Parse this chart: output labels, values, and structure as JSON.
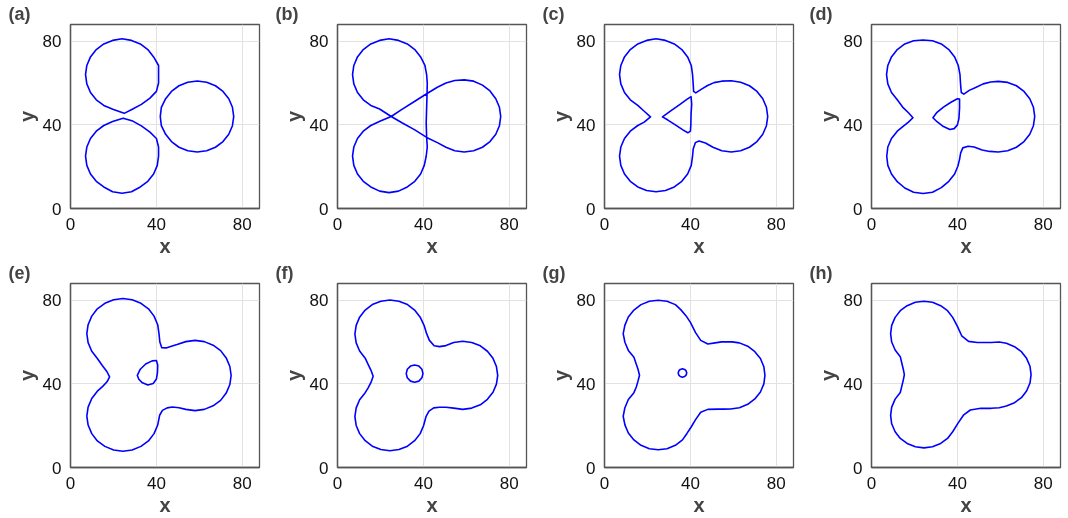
{
  "chart_data": [
    {
      "type": "line",
      "title": "(a)",
      "xlabel": "x",
      "ylabel": "y",
      "xlim": [
        0,
        88
      ],
      "ylim": [
        0,
        88
      ],
      "xticks": [
        0,
        40,
        80
      ],
      "yticks": [
        0,
        40,
        80
      ],
      "grid": true,
      "series": [
        {
          "color": "#0000ff",
          "x": [
            41,
            41,
            38.7,
            36,
            32.5,
            28.4,
            24,
            19.6,
            15.5,
            12,
            9.3,
            7.6,
            7,
            7.6,
            9.3,
            12,
            15.5,
            20,
            25,
            29,
            33,
            37,
            40,
            41,
            41,
            41
          ],
          "values": [
            64,
            68.4,
            72.5,
            76,
            78.7,
            80.4,
            81.2,
            80.4,
            78.7,
            76,
            72.5,
            68.4,
            64,
            59.6,
            55.5,
            52,
            49.3,
            47.3,
            45.5,
            47.6,
            49.8,
            52.8,
            56,
            60,
            64,
            68.4
          ]
        },
        {
          "color": "#0000ff",
          "x": [
            41,
            41,
            40,
            37,
            33,
            29,
            24.5,
            19.6,
            15.5,
            12,
            9.3,
            7.6,
            7,
            7.6,
            9.3,
            12,
            15.5,
            19.6,
            24,
            28.4,
            32.5,
            36,
            38.7,
            40.4,
            41,
            41
          ],
          "values": [
            25,
            29.4,
            33.5,
            36.5,
            39.5,
            41.8,
            43.2,
            41.6,
            39.7,
            37,
            33.5,
            29.4,
            25,
            20.6,
            16.5,
            13,
            10.3,
            8,
            7.3,
            8,
            10.3,
            13,
            16.5,
            20.6,
            25,
            29.4
          ]
        },
        {
          "color": "#0000ff",
          "x": [
            76,
            75.4,
            73.7,
            71,
            67.5,
            63.4,
            59,
            54.6,
            50.5,
            47,
            44.3,
            42.3,
            41.8,
            42.3,
            44.3,
            47,
            50.5,
            54.6,
            59,
            63.4,
            67.5,
            71,
            73.7,
            75.4,
            76,
            75.4
          ],
          "values": [
            44,
            48.4,
            52.5,
            56,
            58.7,
            60.4,
            61,
            60.4,
            58.7,
            56,
            52.5,
            48.4,
            44,
            39.6,
            35.5,
            32,
            29.3,
            27.6,
            27,
            27.6,
            29.3,
            32,
            35.5,
            39.6,
            44,
            48.4
          ]
        }
      ]
    },
    {
      "type": "line",
      "title": "(b)",
      "xlabel": "x",
      "ylabel": "y",
      "xlim": [
        0,
        88
      ],
      "ylim": [
        0,
        88
      ],
      "xticks": [
        0,
        40,
        80
      ],
      "yticks": [
        0,
        40,
        80
      ],
      "grid": true,
      "series": [
        {
          "color": "#0000ff",
          "x": [
            25,
            19.6,
            15.5,
            12,
            9.3,
            7.6,
            7,
            7.6,
            9.3,
            12,
            15.5,
            19.6,
            24,
            28.4,
            32.5,
            36,
            38.7,
            40.7,
            41.5,
            41.8,
            41.7,
            41.5,
            41.3,
            41.5,
            41.8,
            41.3,
            40.4,
            38.7,
            36,
            32.5,
            28.4,
            24,
            19.6,
            15.5,
            12,
            9.3,
            7.6,
            7,
            7.6,
            9.3,
            12,
            15.5,
            20,
            25,
            30,
            36,
            41.7,
            46.5,
            50.5,
            54.6,
            59,
            63.4,
            67.5,
            71,
            73.7,
            75.4,
            76,
            75.4,
            73.7,
            71,
            67.5,
            63.4,
            59,
            54.6,
            50.5,
            46.5,
            41.5,
            36,
            30,
            25,
            19.6
          ],
          "values": [
            44,
            47.6,
            49.3,
            52,
            55.5,
            59.6,
            64,
            68.4,
            72.5,
            76,
            78.7,
            80.4,
            81.2,
            80.4,
            78.7,
            76,
            72.5,
            68.4,
            64,
            60,
            55,
            48,
            41,
            34,
            29.4,
            25,
            20.6,
            16.5,
            13,
            10.3,
            8.3,
            7.6,
            8.3,
            10.3,
            13,
            16.5,
            20.6,
            25,
            29.4,
            33.5,
            37,
            39.7,
            41.8,
            44,
            47.4,
            51.3,
            55,
            58,
            60,
            61.2,
            61.5,
            60.9,
            59,
            56.2,
            52.5,
            48.4,
            44,
            39.6,
            35.5,
            32,
            29.3,
            27.6,
            27,
            27.6,
            29.3,
            31.5,
            34,
            37.6,
            41,
            44,
            47.6
          ]
        }
      ]
    },
    {
      "type": "line",
      "title": "(c)",
      "xlabel": "x",
      "ylabel": "y",
      "xlim": [
        0,
        88
      ],
      "ylim": [
        0,
        88
      ],
      "xticks": [
        0,
        40,
        80
      ],
      "yticks": [
        0,
        40,
        80
      ],
      "grid": true,
      "series": [
        {
          "color": "#0000ff",
          "x": [
            21.4,
            18.5,
            15.5,
            12,
            9.3,
            7.6,
            7,
            7.6,
            9.3,
            12,
            15.5,
            19.6,
            24,
            28.4,
            32.5,
            36,
            38.7,
            40.4,
            41,
            41.3,
            41.5,
            42.5,
            45,
            48,
            51,
            54.6,
            59,
            63.4,
            67.5,
            71,
            73.7,
            75.4,
            76,
            75.4,
            73.7,
            71,
            67.5,
            63.4,
            59,
            54.6,
            50.5,
            47,
            44,
            42.3,
            41.3,
            41,
            40.4,
            38.7,
            36,
            32.5,
            28.4,
            24,
            19.6,
            15.5,
            12,
            9.3,
            7.6,
            7,
            7.6,
            9.3,
            12,
            15.5,
            18.5,
            21.4,
            18.5
          ],
          "values": [
            43.8,
            46.5,
            49.3,
            52,
            55.5,
            59.6,
            64,
            68.4,
            72.5,
            76,
            78.7,
            80.4,
            81.2,
            80.4,
            78.7,
            76,
            72.5,
            68.4,
            64,
            59.5,
            56,
            55.3,
            57,
            58.8,
            60.2,
            60.9,
            61.1,
            60.4,
            58.7,
            56,
            52.5,
            48.4,
            44,
            39.6,
            35.5,
            32,
            29.3,
            27.6,
            27,
            27.6,
            29.3,
            31.3,
            32.3,
            31.5,
            28.5,
            25,
            20.6,
            16.5,
            13,
            10.3,
            8.6,
            8,
            8.6,
            10.3,
            13,
            16.5,
            20.6,
            25,
            29.4,
            33.5,
            37,
            39.7,
            41.3,
            43.8,
            46.5
          ]
        },
        {
          "color": "#0000ff",
          "x": [
            27,
            31,
            35,
            38.5,
            40.3,
            40.6,
            40.3,
            40.2,
            40,
            38.8,
            36.5,
            33,
            29.5,
            27,
            31
          ],
          "values": [
            43.8,
            46.8,
            49.7,
            52.3,
            53.5,
            50,
            45,
            40,
            37,
            36.2,
            37.6,
            40,
            42.3,
            43.8,
            46.8
          ]
        }
      ]
    },
    {
      "type": "line",
      "title": "(d)",
      "xlabel": "x",
      "ylabel": "y",
      "xlim": [
        0,
        88
      ],
      "ylim": [
        0,
        88
      ],
      "xticks": [
        0,
        40,
        80
      ],
      "yticks": [
        0,
        40,
        80
      ],
      "grid": true,
      "series": [
        {
          "color": "#0000ff",
          "x": [
            19.3,
            17.2,
            14.5,
            12,
            9.3,
            7.6,
            7,
            7.6,
            9.3,
            12,
            15.5,
            19.6,
            24,
            28.4,
            32.5,
            36,
            38.7,
            40.4,
            41.2,
            41.5,
            41.8,
            43,
            45.5,
            48.5,
            52,
            55.5,
            59,
            63.4,
            67.5,
            71,
            73.7,
            75.4,
            76,
            75.4,
            73.7,
            71,
            67.5,
            63.4,
            59,
            55,
            51.5,
            47.8,
            45,
            42.5,
            41.5,
            41,
            40.2,
            38.7,
            36,
            32.5,
            28.4,
            24,
            19.6,
            15.5,
            12,
            9.3,
            7.6,
            7.1,
            7.6,
            9.3,
            12,
            15,
            17.2,
            19.3,
            17.2
          ],
          "values": [
            43.4,
            45.8,
            48.5,
            52,
            55.5,
            59.6,
            64,
            68.4,
            72.5,
            76,
            78.7,
            80.2,
            80.6,
            80.2,
            78.7,
            76,
            72.5,
            68.4,
            64,
            59,
            55.5,
            54.7,
            56.5,
            57.9,
            59.6,
            60.5,
            60.8,
            60.3,
            58.7,
            56,
            52.5,
            48.4,
            44,
            39.6,
            35.5,
            32,
            29.3,
            27.6,
            27,
            27.3,
            28,
            29.4,
            29.8,
            29,
            26.5,
            23.5,
            20.2,
            16.5,
            13,
            10,
            7.8,
            7.2,
            7.8,
            9.8,
            12.8,
            16.5,
            20.6,
            25,
            29.4,
            33.5,
            37,
            39.5,
            41.3,
            43.4,
            45.8
          ]
        },
        {
          "color": "#0000ff",
          "x": [
            28.6,
            30.5,
            33.5,
            37,
            40,
            41,
            41,
            40.7,
            40,
            38.5,
            36.5,
            33.5,
            30.5,
            28.6,
            30.5
          ],
          "values": [
            43.4,
            46,
            48.5,
            50.8,
            52.5,
            52.3,
            48,
            43,
            40,
            38.2,
            37.8,
            39.2,
            41.5,
            43.4,
            46
          ]
        }
      ]
    },
    {
      "type": "line",
      "title": "(e)",
      "xlabel": "x",
      "ylabel": "y",
      "xlim": [
        0,
        88
      ],
      "ylim": [
        0,
        88
      ],
      "xticks": [
        0,
        40,
        80
      ],
      "yticks": [
        0,
        40,
        80
      ],
      "grid": true,
      "series": [
        {
          "color": "#0000ff",
          "x": [
            18.2,
            17,
            14.8,
            12.5,
            9.9,
            8.2,
            7.6,
            8.2,
            9.9,
            12.5,
            16,
            20.1,
            24.4,
            28.7,
            32.8,
            36.3,
            38.9,
            40.6,
            41.2,
            41.6,
            42.5,
            44.5,
            47,
            49.6,
            53.7,
            58,
            62.3,
            66.4,
            69.9,
            72.5,
            74.2,
            74.8,
            74.2,
            72.5,
            69.9,
            66.4,
            62.3,
            58,
            53.7,
            50.5,
            47.5,
            45,
            42.8,
            41.5,
            40.6,
            38.9,
            36.3,
            32.8,
            28.7,
            24.4,
            20.1,
            16,
            12.5,
            9.9,
            8.2,
            7.6,
            8.2,
            9.9,
            12.5,
            15,
            17,
            18.2,
            17
          ],
          "values": [
            43.3,
            45.8,
            48.8,
            52.1,
            55.6,
            59.7,
            64,
            68.3,
            72.4,
            75.9,
            78.5,
            80.2,
            80.8,
            80.2,
            78.5,
            75.9,
            72.4,
            68.3,
            64,
            60,
            57.3,
            57.2,
            58,
            58.8,
            60.2,
            60.8,
            60.2,
            58.5,
            55.9,
            52.4,
            48.3,
            44,
            39.7,
            35.6,
            32.1,
            29.5,
            27.8,
            27.2,
            27.8,
            28.6,
            28.9,
            28.5,
            27.3,
            25,
            20.3,
            16.2,
            12.7,
            10.1,
            8.4,
            7.8,
            8.4,
            10.1,
            12.7,
            16.2,
            20.3,
            24.6,
            28.9,
            33,
            36.5,
            38.8,
            41,
            43.3,
            45.8
          ]
        },
        {
          "color": "#0000ff",
          "x": [
            31.1,
            32.5,
            35,
            38,
            40,
            40.6,
            40.5,
            40,
            38.5,
            36,
            33.5,
            31.8,
            31.1,
            32.5
          ],
          "values": [
            44.1,
            47,
            49.5,
            51,
            51.2,
            49,
            45.5,
            42.3,
            40.2,
            39.5,
            40.5,
            42.2,
            44.1,
            47
          ]
        }
      ]
    },
    {
      "type": "line",
      "title": "(f)",
      "xlabel": "x",
      "ylabel": "y",
      "xlim": [
        0,
        88
      ],
      "ylim": [
        0,
        88
      ],
      "xticks": [
        0,
        40,
        80
      ],
      "yticks": [
        0,
        40,
        80
      ],
      "grid": true,
      "series": [
        {
          "color": "#0000ff",
          "x": [
            16.6,
            15.6,
            14.2,
            12.9,
            10.3,
            8.7,
            8.1,
            8.7,
            10.3,
            12.9,
            16.2,
            20.2,
            24.4,
            28.6,
            32.6,
            35.9,
            38.5,
            40.3,
            41.5,
            42.8,
            45,
            47.5,
            50.5,
            54.1,
            58.3,
            62.5,
            66.5,
            69.8,
            72.4,
            74,
            74.6,
            74,
            72.4,
            69.8,
            66.5,
            62.5,
            58.3,
            54.1,
            50.5,
            47.5,
            44.8,
            42.6,
            41.2,
            40.1,
            38.5,
            35.9,
            32.6,
            28.6,
            24.4,
            20.2,
            16.2,
            12.9,
            10.3,
            8.7,
            8.1,
            8.7,
            10.3,
            12.9,
            14.2,
            15.6,
            16.6,
            15.6
          ],
          "values": [
            43.6,
            46.5,
            49.4,
            52.3,
            55.7,
            59.6,
            63.8,
            68,
            71.9,
            75.3,
            77.9,
            79.5,
            80.1,
            79.5,
            77.9,
            75.3,
            71.9,
            68,
            64,
            60.8,
            58.2,
            57.8,
            58.3,
            59.8,
            60.4,
            59.8,
            58.2,
            55.6,
            52.2,
            48.3,
            44.1,
            39.9,
            36,
            32.6,
            30,
            28.4,
            27.8,
            28.4,
            28.8,
            28.8,
            28.5,
            27,
            24.3,
            20.1,
            16.2,
            12.8,
            10.2,
            8.6,
            8,
            8.6,
            10.2,
            12.8,
            16.2,
            20.1,
            24.3,
            28.5,
            32.4,
            35.8,
            38,
            40.7,
            43.6,
            46.5
          ]
        },
        {
          "color": "#0000ff",
          "x": [
            39.8,
            39.3,
            37.9,
            35.9,
            34,
            32.5,
            32,
            32.5,
            34,
            35.9,
            37.9,
            39.3,
            39.8,
            39.3
          ],
          "values": [
            44.9,
            47,
            48.5,
            49,
            48.5,
            47,
            44.9,
            42.9,
            41.3,
            40.8,
            41.3,
            42.9,
            44.9,
            47
          ]
        }
      ]
    },
    {
      "type": "line",
      "title": "(g)",
      "xlabel": "x",
      "ylabel": "y",
      "xlim": [
        0,
        88
      ],
      "ylim": [
        0,
        88
      ],
      "xticks": [
        0,
        40,
        80
      ],
      "yticks": [
        0,
        40,
        80
      ],
      "grid": true,
      "series": [
        {
          "color": "#0000ff",
          "x": [
            16.3,
            15.6,
            14.6,
            13.7,
            11.1,
            9.5,
            8.7,
            9.5,
            11.1,
            13.7,
            17,
            20.9,
            25,
            29.1,
            33,
            35.5,
            38,
            40,
            42.4,
            44.8,
            48.1,
            51.5,
            54.5,
            59.4,
            62.8,
            66.7,
            70,
            72.6,
            74.2,
            74.7,
            74.2,
            72.6,
            70,
            66.7,
            62.8,
            58.7,
            55.5,
            52.9,
            48.1,
            44.8,
            42.4,
            40.5,
            38.4,
            36.3,
            33,
            29.1,
            25,
            20.9,
            17,
            13.7,
            11.1,
            9.5,
            8.7,
            9.5,
            11.1,
            13.7,
            14.8,
            15.6,
            16.3,
            15.6
          ],
          "values": [
            44.1,
            47,
            50,
            52.7,
            56,
            59.9,
            64,
            68.1,
            72,
            75.3,
            77.9,
            79.5,
            80,
            79.5,
            77.9,
            75.5,
            72.5,
            69.4,
            64.5,
            60.8,
            59.1,
            59.6,
            60.1,
            60.1,
            59.6,
            58,
            55.4,
            52.1,
            48.2,
            44.1,
            40,
            36.1,
            32.8,
            30.2,
            28.6,
            28,
            27.9,
            27.9,
            27.8,
            26.4,
            22.9,
            19.6,
            16.3,
            13.2,
            10.6,
            9,
            8.5,
            9,
            10.6,
            13.2,
            16.5,
            20.4,
            24.5,
            28.6,
            32.5,
            35.8,
            38.5,
            41.3,
            44.1,
            47
          ]
        },
        {
          "color": "#0000ff",
          "x": [
            38.3,
            38,
            37.3,
            36.3,
            35.3,
            34.6,
            34.3,
            34.6,
            35.3,
            36.3,
            37.3,
            38,
            38.3,
            38
          ],
          "values": [
            45.2,
            46.2,
            46.9,
            47.2,
            46.9,
            46.2,
            45.2,
            44.2,
            43.5,
            43.2,
            43.5,
            44.2,
            45.2,
            46.2
          ]
        }
      ]
    },
    {
      "type": "line",
      "title": "(h)",
      "xlabel": "x",
      "ylabel": "y",
      "xlim": [
        0,
        88
      ],
      "ylim": [
        0,
        88
      ],
      "xticks": [
        0,
        40,
        80
      ],
      "yticks": [
        0,
        40,
        80
      ],
      "grid": true,
      "series": [
        {
          "color": "#0000ff",
          "x": [
            15.3,
            14.8,
            14.1,
            13.4,
            11,
            9.4,
            8.9,
            9.4,
            11,
            13.4,
            16.6,
            20.4,
            24.4,
            28.4,
            32.2,
            35.4,
            37.8,
            40,
            42,
            45.2,
            49.3,
            55.7,
            59.5,
            62.8,
            66.6,
            69.8,
            72.2,
            73.8,
            74.3,
            73.8,
            72.2,
            69.8,
            66.6,
            62.8,
            59.5,
            55.7,
            50.9,
            46,
            42.8,
            40.3,
            37.8,
            35.4,
            32.2,
            28.4,
            24.4,
            20.4,
            16.6,
            13.4,
            11,
            9.4,
            8.9,
            9.4,
            11,
            13.4,
            14.1,
            14.8,
            15.3,
            14.8
          ],
          "values": [
            44.4,
            47,
            50,
            53,
            56.2,
            60,
            64,
            68,
            71.8,
            75,
            77.4,
            79,
            79.5,
            79,
            77.4,
            75,
            71.8,
            67.5,
            63,
            60.3,
            59.8,
            59.8,
            60,
            59.4,
            57.8,
            55.4,
            52.2,
            48.4,
            44.4,
            40.4,
            36.6,
            33.4,
            31,
            29.4,
            28.6,
            28.3,
            28.3,
            27.5,
            25,
            21.2,
            17.1,
            13.9,
            11.5,
            9.9,
            9.4,
            9.9,
            11.5,
            13.9,
            17.1,
            20.9,
            24.9,
            28.9,
            32.7,
            35.9,
            38.8,
            41.8,
            44.4,
            47
          ]
        }
      ]
    }
  ]
}
